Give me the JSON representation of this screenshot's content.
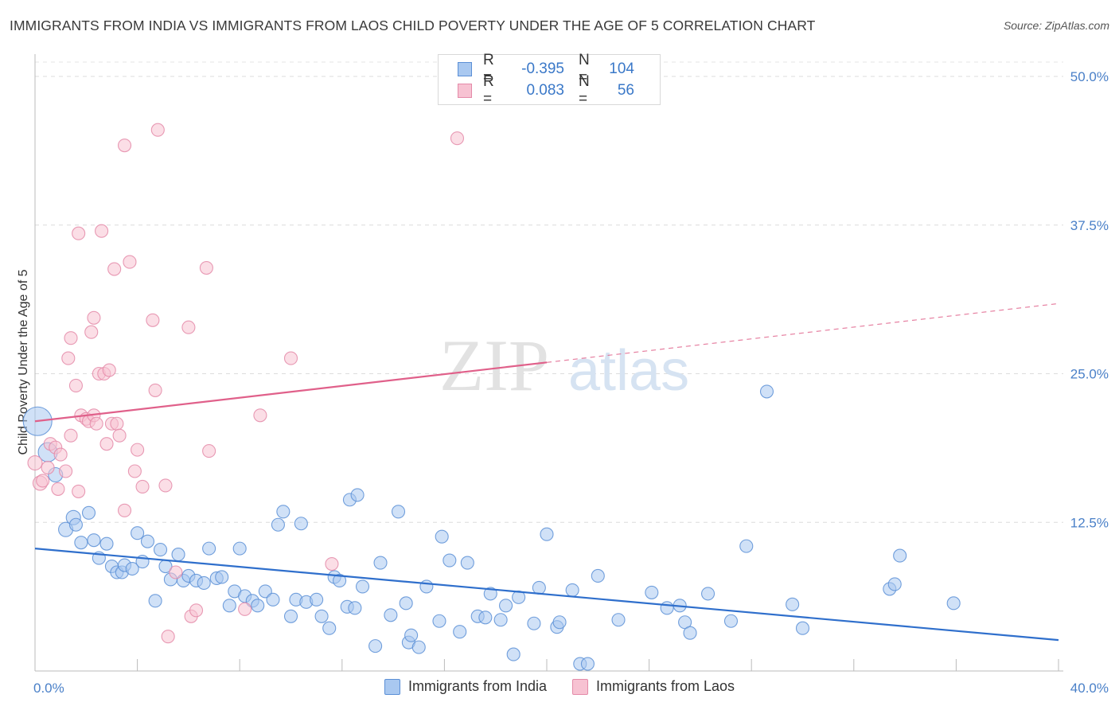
{
  "title": "IMMIGRANTS FROM INDIA VS IMMIGRANTS FROM LAOS CHILD POVERTY UNDER THE AGE OF 5 CORRELATION CHART",
  "source": "Source: ZipAtlas.com",
  "watermark": {
    "zip": "ZIP",
    "atlas": "atlas"
  },
  "legend": {
    "rows": [
      {
        "r_label": "R =",
        "r_value": "-0.395",
        "n_label": "N =",
        "n_value": "104",
        "color": "#a9c8f0",
        "border": "#5b8fd6"
      },
      {
        "r_label": "R =",
        "r_value": "0.083",
        "n_label": "N =",
        "n_value": "56",
        "color": "#f7c2d2",
        "border": "#e48aa8"
      }
    ]
  },
  "bottom_legend": [
    {
      "label": "Immigrants from India",
      "color": "#a9c8f0",
      "border": "#5b8fd6"
    },
    {
      "label": "Immigrants from Laos",
      "color": "#f7c2d2",
      "border": "#e48aa8"
    }
  ],
  "chart_data": {
    "type": "scatter",
    "title": "IMMIGRANTS FROM INDIA VS IMMIGRANTS FROM LAOS CHILD POVERTY UNDER THE AGE OF 5 CORRELATION CHART",
    "xlabel": "",
    "ylabel": "Child Poverty Under the Age of 5",
    "xlim": [
      0,
      40
    ],
    "ylim": [
      0,
      50
    ],
    "x_tick_labels": [
      "0.0%",
      "40.0%"
    ],
    "y_ticks": [
      12.5,
      25.0,
      37.5,
      50.0
    ],
    "y_tick_labels": [
      "12.5%",
      "25.0%",
      "37.5%",
      "50.0%"
    ],
    "grid": "horizontal dashed",
    "colors": {
      "india_fill": "#a9c8f0",
      "india_stroke": "#5b8fd6",
      "india_line": "#2f6fcc",
      "laos_fill": "#f7c2d2",
      "laos_stroke": "#e48aa8",
      "laos_line": "#e0608a"
    },
    "series": [
      {
        "name": "Immigrants from India",
        "trend": {
          "x": [
            0,
            40
          ],
          "y": [
            10.3,
            2.6
          ],
          "dashed_from": null
        },
        "points": [
          [
            0.1,
            21.0,
            18
          ],
          [
            0.5,
            18.4,
            12
          ],
          [
            0.8,
            16.5,
            9
          ],
          [
            1.2,
            11.9,
            9
          ],
          [
            1.5,
            12.9,
            9
          ],
          [
            1.6,
            12.3,
            8
          ],
          [
            1.8,
            10.8,
            8
          ],
          [
            2.1,
            13.3,
            8
          ],
          [
            2.3,
            11.0,
            8
          ],
          [
            2.5,
            9.5,
            8
          ],
          [
            2.8,
            10.7,
            8
          ],
          [
            3.0,
            8.8,
            8
          ],
          [
            3.2,
            8.3,
            8
          ],
          [
            3.4,
            8.3,
            8
          ],
          [
            3.5,
            8.9,
            8
          ],
          [
            3.8,
            8.6,
            8
          ],
          [
            4.0,
            11.6,
            8
          ],
          [
            4.2,
            9.2,
            8
          ],
          [
            4.4,
            10.9,
            8
          ],
          [
            4.7,
            5.9,
            8
          ],
          [
            4.9,
            10.2,
            8
          ],
          [
            5.1,
            8.8,
            8
          ],
          [
            5.3,
            7.7,
            8
          ],
          [
            5.6,
            9.8,
            8
          ],
          [
            5.8,
            7.6,
            8
          ],
          [
            6.0,
            8.0,
            8
          ],
          [
            6.3,
            7.6,
            8
          ],
          [
            6.6,
            7.4,
            8
          ],
          [
            6.8,
            10.3,
            8
          ],
          [
            7.1,
            7.8,
            8
          ],
          [
            7.3,
            7.9,
            8
          ],
          [
            7.6,
            5.5,
            8
          ],
          [
            7.8,
            6.7,
            8
          ],
          [
            8.0,
            10.3,
            8
          ],
          [
            8.2,
            6.3,
            8
          ],
          [
            8.5,
            5.9,
            8
          ],
          [
            8.7,
            5.5,
            8
          ],
          [
            9.0,
            6.7,
            8
          ],
          [
            9.3,
            6.0,
            8
          ],
          [
            9.5,
            12.3,
            8
          ],
          [
            9.7,
            13.4,
            8
          ],
          [
            10.0,
            4.6,
            8
          ],
          [
            10.2,
            6.0,
            8
          ],
          [
            10.4,
            12.4,
            8
          ],
          [
            10.6,
            5.8,
            8
          ],
          [
            11.0,
            6.0,
            8
          ],
          [
            11.2,
            4.6,
            8
          ],
          [
            11.5,
            3.6,
            8
          ],
          [
            11.7,
            7.9,
            8
          ],
          [
            11.9,
            7.6,
            8
          ],
          [
            12.2,
            5.4,
            8
          ],
          [
            12.5,
            5.3,
            8
          ],
          [
            12.3,
            14.4,
            8
          ],
          [
            12.6,
            14.8,
            8
          ],
          [
            12.8,
            7.1,
            8
          ],
          [
            13.3,
            2.1,
            8
          ],
          [
            13.5,
            9.1,
            8
          ],
          [
            13.9,
            4.7,
            8
          ],
          [
            14.2,
            13.4,
            8
          ],
          [
            14.5,
            5.7,
            8
          ],
          [
            14.6,
            2.4,
            8
          ],
          [
            14.7,
            3.0,
            8
          ],
          [
            15.0,
            2.0,
            8
          ],
          [
            15.3,
            7.1,
            8
          ],
          [
            15.8,
            4.2,
            8
          ],
          [
            15.9,
            11.3,
            8
          ],
          [
            16.2,
            9.3,
            8
          ],
          [
            16.6,
            3.3,
            8
          ],
          [
            16.9,
            9.1,
            8
          ],
          [
            17.3,
            4.6,
            8
          ],
          [
            17.6,
            4.5,
            8
          ],
          [
            17.8,
            6.5,
            8
          ],
          [
            18.2,
            4.3,
            8
          ],
          [
            18.4,
            5.5,
            8
          ],
          [
            18.7,
            1.4,
            8
          ],
          [
            18.9,
            6.2,
            8
          ],
          [
            19.5,
            4.0,
            8
          ],
          [
            19.7,
            7.0,
            8
          ],
          [
            20.0,
            11.5,
            8
          ],
          [
            20.4,
            3.7,
            8
          ],
          [
            20.5,
            4.1,
            8
          ],
          [
            21.0,
            6.8,
            8
          ],
          [
            21.3,
            0.6,
            8
          ],
          [
            21.6,
            0.6,
            8
          ],
          [
            22.0,
            8.0,
            8
          ],
          [
            22.8,
            4.3,
            8
          ],
          [
            24.1,
            6.6,
            8
          ],
          [
            24.7,
            5.3,
            8
          ],
          [
            25.2,
            5.5,
            8
          ],
          [
            25.4,
            4.1,
            8
          ],
          [
            25.6,
            3.2,
            8
          ],
          [
            26.3,
            6.5,
            8
          ],
          [
            27.2,
            4.2,
            8
          ],
          [
            27.8,
            10.5,
            8
          ],
          [
            29.6,
            5.6,
            8
          ],
          [
            30.0,
            3.6,
            8
          ],
          [
            28.6,
            23.5,
            8
          ],
          [
            33.4,
            6.9,
            8
          ],
          [
            33.6,
            7.3,
            8
          ],
          [
            33.8,
            9.7,
            8
          ],
          [
            35.9,
            5.7,
            8
          ]
        ]
      },
      {
        "name": "Immigrants from Laos",
        "trend": {
          "x": [
            0,
            40
          ],
          "y": [
            21.0,
            30.9
          ],
          "dashed_from": 20
        },
        "points": [
          [
            0.0,
            17.5,
            9
          ],
          [
            0.2,
            15.8,
            9
          ],
          [
            0.3,
            16.0,
            8
          ],
          [
            0.5,
            17.1,
            8
          ],
          [
            0.6,
            19.1,
            8
          ],
          [
            0.8,
            18.8,
            8
          ],
          [
            1.0,
            18.2,
            8
          ],
          [
            0.9,
            15.3,
            8
          ],
          [
            1.2,
            16.8,
            8
          ],
          [
            1.3,
            26.3,
            8
          ],
          [
            1.4,
            19.8,
            8
          ],
          [
            1.4,
            28.0,
            8
          ],
          [
            1.6,
            24.0,
            8
          ],
          [
            1.7,
            15.1,
            8
          ],
          [
            1.7,
            36.8,
            8
          ],
          [
            1.8,
            21.5,
            8
          ],
          [
            2.0,
            21.2,
            8
          ],
          [
            2.1,
            21.0,
            8
          ],
          [
            2.2,
            28.5,
            8
          ],
          [
            2.3,
            21.5,
            8
          ],
          [
            2.3,
            29.7,
            8
          ],
          [
            2.4,
            20.8,
            8
          ],
          [
            2.5,
            25.0,
            8
          ],
          [
            2.6,
            37.0,
            8
          ],
          [
            2.7,
            25.0,
            8
          ],
          [
            2.8,
            19.1,
            8
          ],
          [
            2.9,
            25.3,
            8
          ],
          [
            3.0,
            20.8,
            8
          ],
          [
            3.1,
            33.8,
            8
          ],
          [
            3.2,
            20.8,
            8
          ],
          [
            3.3,
            19.8,
            8
          ],
          [
            3.5,
            44.2,
            8
          ],
          [
            3.5,
            13.5,
            8
          ],
          [
            3.7,
            34.4,
            8
          ],
          [
            3.9,
            16.8,
            8
          ],
          [
            4.0,
            18.6,
            8
          ],
          [
            4.2,
            15.5,
            8
          ],
          [
            4.6,
            29.5,
            8
          ],
          [
            4.7,
            23.6,
            8
          ],
          [
            4.8,
            45.5,
            8
          ],
          [
            5.1,
            15.6,
            8
          ],
          [
            5.2,
            2.9,
            8
          ],
          [
            5.5,
            8.3,
            8
          ],
          [
            6.0,
            28.9,
            8
          ],
          [
            6.1,
            4.6,
            8
          ],
          [
            6.3,
            5.1,
            8
          ],
          [
            6.7,
            33.9,
            8
          ],
          [
            6.8,
            18.5,
            8
          ],
          [
            8.2,
            5.2,
            8
          ],
          [
            8.8,
            21.5,
            8
          ],
          [
            10.0,
            26.3,
            8
          ],
          [
            11.6,
            9.0,
            8
          ],
          [
            16.5,
            44.8,
            8
          ]
        ]
      }
    ]
  }
}
